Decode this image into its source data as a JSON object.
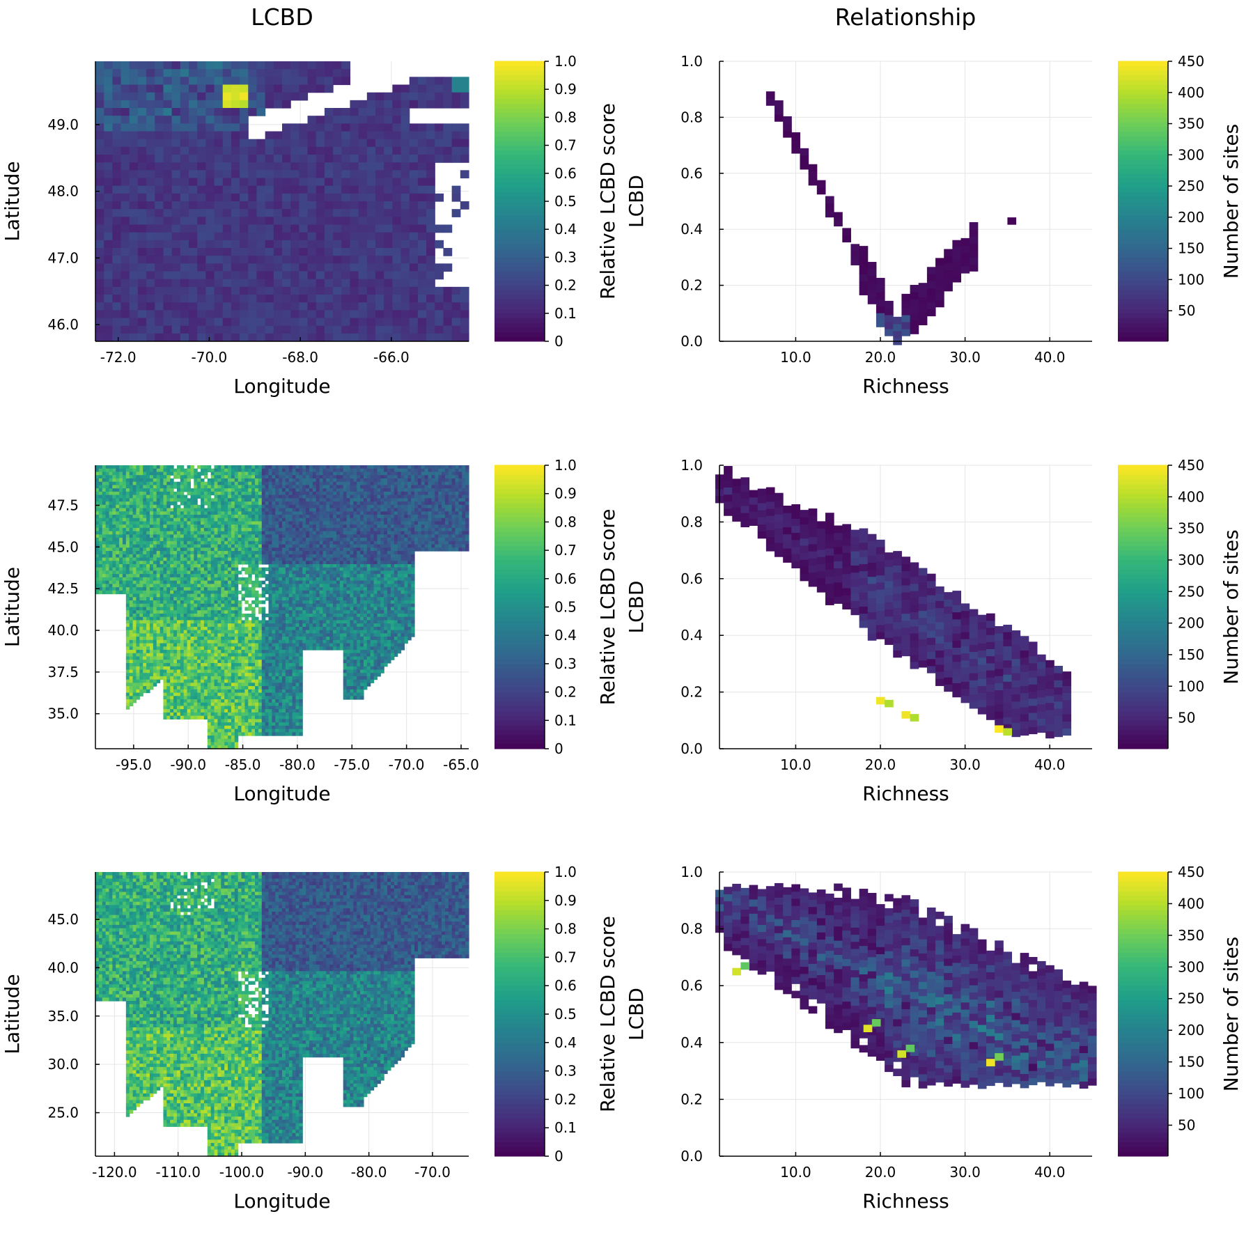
{
  "column_titles": [
    "LCBD",
    "Relationship"
  ],
  "colormap": [
    "#440154",
    "#482878",
    "#3e4989",
    "#31688e",
    "#26828e",
    "#1f9e89",
    "#35b779",
    "#6ece58",
    "#b5de2b",
    "#fde725"
  ],
  "colors": {
    "missing": "#ffffff",
    "axis": "#000000",
    "grid": "#e5e5e5"
  },
  "chart_data": [
    {
      "type": "heatmap",
      "panel": "map",
      "title": "LCBD",
      "xlabel": "Longitude",
      "ylabel": "Latitude",
      "xlim": [
        -72.5,
        -64.3
      ],
      "ylim": [
        45.75,
        49.95
      ],
      "xticks": [
        -72.0,
        -70.0,
        -68.0,
        -66.0
      ],
      "xtick_labels": [
        "-72.0",
        "-70.0",
        "-68.0",
        "-66.0"
      ],
      "yticks": [
        46.0,
        47.0,
        48.0,
        49.0
      ],
      "ytick_labels": [
        "46.0",
        "47.0",
        "48.0",
        "49.0"
      ],
      "colorbar": {
        "label": "Relative LCBD score",
        "range": [
          0,
          1
        ],
        "ticks": [
          0,
          0.1,
          0.2,
          0.3,
          0.4,
          0.5,
          0.6,
          0.7,
          0.8,
          0.9,
          1.0
        ],
        "tick_labels": [
          "0",
          "0.1",
          "0.2",
          "0.3",
          "0.4",
          "0.5",
          "0.6",
          "0.7",
          "0.8",
          "0.9",
          "1.0"
        ]
      },
      "grid": true,
      "approx_distribution": {
        "typical": 0.12,
        "high_values": "near -69.8, 49.6 (yellow, ~0.95)",
        "missing": "white areas: upper-right (St. Lawrence estuary), right edge (ocean)"
      }
    },
    {
      "type": "heatmap",
      "panel": "relationship",
      "title": "Relationship",
      "xlabel": "Richness",
      "ylabel": "LCBD",
      "xlim": [
        1,
        45
      ],
      "ylim": [
        0.0,
        1.0
      ],
      "xticks": [
        10.0,
        20.0,
        30.0,
        40.0
      ],
      "xtick_labels": [
        "10.0",
        "20.0",
        "30.0",
        "40.0"
      ],
      "yticks": [
        0.0,
        0.2,
        0.4,
        0.6,
        0.8,
        1.0
      ],
      "ytick_labels": [
        "0.0",
        "0.2",
        "0.4",
        "0.6",
        "0.8",
        "1.0"
      ],
      "colorbar": {
        "label": "Number of sites",
        "range": [
          1,
          450
        ],
        "ticks": [
          50,
          100,
          150,
          200,
          250,
          300,
          350,
          400,
          450
        ],
        "tick_labels": [
          "50",
          "100",
          "150",
          "200",
          "250",
          "300",
          "350",
          "400",
          "450"
        ]
      },
      "grid": true,
      "approx_distribution": {
        "shape": "U-shaped",
        "minimum": {
          "richness": 22,
          "lcbd": 0.03,
          "count": 100
        },
        "top_left": {
          "richness": 8,
          "lcbd": 0.88,
          "count": 10
        },
        "right_arm": {
          "richness": 31,
          "lcbd": 0.33,
          "count": 10
        },
        "outlier": {
          "richness": 35.5,
          "lcbd": 0.43,
          "count": 5
        }
      }
    },
    {
      "type": "heatmap",
      "panel": "map",
      "title": "",
      "xlabel": "Longitude",
      "ylabel": "Latitude",
      "xlim": [
        -98.5,
        -64.3
      ],
      "ylim": [
        32.9,
        49.9
      ],
      "xticks": [
        -95.0,
        -90.0,
        -85.0,
        -80.0,
        -75.0,
        -70.0,
        -65.0
      ],
      "xtick_labels": [
        "-95.0",
        "-90.0",
        "-85.0",
        "-80.0",
        "-75.0",
        "-70.0",
        "-65.0"
      ],
      "yticks": [
        35.0,
        37.5,
        40.0,
        42.5,
        45.0,
        47.5
      ],
      "ytick_labels": [
        "35.0",
        "37.5",
        "40.0",
        "42.5",
        "45.0",
        "47.5"
      ],
      "colorbar": {
        "label": "Relative LCBD score",
        "range": [
          0,
          1
        ],
        "ticks": [
          0,
          0.1,
          0.2,
          0.3,
          0.4,
          0.5,
          0.6,
          0.7,
          0.8,
          0.9,
          1.0
        ],
        "tick_labels": [
          "0",
          "0.1",
          "0.2",
          "0.3",
          "0.4",
          "0.5",
          "0.6",
          "0.7",
          "0.8",
          "0.9",
          "1.0"
        ]
      },
      "grid": true,
      "approx_distribution": {
        "typical": 0.12,
        "high_values": "western edge near -98 (0.6-0.95)",
        "missing": "Atlantic Ocean to the east/southeast"
      }
    },
    {
      "type": "heatmap",
      "panel": "relationship",
      "title": "",
      "xlabel": "Richness",
      "ylabel": "LCBD",
      "xlim": [
        1,
        45
      ],
      "ylim": [
        0.0,
        1.0
      ],
      "xticks": [
        10.0,
        20.0,
        30.0,
        40.0
      ],
      "xtick_labels": [
        "10.0",
        "20.0",
        "30.0",
        "40.0"
      ],
      "yticks": [
        0.0,
        0.2,
        0.4,
        0.6,
        0.8,
        1.0
      ],
      "ytick_labels": [
        "0.0",
        "0.2",
        "0.4",
        "0.6",
        "0.8",
        "1.0"
      ],
      "colorbar": {
        "label": "Number of sites",
        "range": [
          1,
          450
        ],
        "ticks": [
          50,
          100,
          150,
          200,
          250,
          300,
          350,
          400,
          450
        ],
        "tick_labels": [
          "50",
          "100",
          "150",
          "200",
          "250",
          "300",
          "350",
          "400",
          "450"
        ]
      },
      "grid": true,
      "approx_distribution": {
        "shape": "decreasing band",
        "start": {
          "richness": 2,
          "lcbd": 0.95
        },
        "end": {
          "richness": 42,
          "lcbd": 0.12
        },
        "hotspots": [
          {
            "richness": 20,
            "lcbd": 0.17,
            "count": 440
          },
          {
            "richness": 23,
            "lcbd": 0.12,
            "count": 440
          },
          {
            "richness": 34,
            "lcbd": 0.07,
            "count": 450
          }
        ]
      }
    },
    {
      "type": "heatmap",
      "panel": "map",
      "title": "",
      "xlabel": "Longitude",
      "ylabel": "Latitude",
      "xlim": [
        -123,
        -64.3
      ],
      "ylim": [
        20.5,
        49.9
      ],
      "xticks": [
        -120.0,
        -110.0,
        -100.0,
        -90.0,
        -80.0,
        -70.0
      ],
      "xtick_labels": [
        "-120.0",
        "-110.0",
        "-100.0",
        "-90.0",
        "-80.0",
        "-70.0"
      ],
      "yticks": [
        25.0,
        30.0,
        35.0,
        40.0,
        45.0
      ],
      "ytick_labels": [
        "25.0",
        "30.0",
        "35.0",
        "40.0",
        "45.0"
      ],
      "colorbar": {
        "label": "Relative LCBD score",
        "range": [
          0,
          1
        ],
        "ticks": [
          0,
          0.1,
          0.2,
          0.3,
          0.4,
          0.5,
          0.6,
          0.7,
          0.8,
          0.9,
          1.0
        ],
        "tick_labels": [
          "0",
          "0.1",
          "0.2",
          "0.3",
          "0.4",
          "0.5",
          "0.6",
          "0.7",
          "0.8",
          "0.9",
          "1.0"
        ]
      },
      "grid": true,
      "approx_distribution": {
        "typical": 0.45,
        "high_values": "Mexico and Great Plains (0.7-0.9)",
        "low_values": "northeast (0.2-0.3)",
        "missing": "oceans, Gulf of Mexico, scattered interior gaps"
      }
    },
    {
      "type": "heatmap",
      "panel": "relationship",
      "title": "",
      "xlabel": "Richness",
      "ylabel": "LCBD",
      "xlim": [
        1,
        45
      ],
      "ylim": [
        0.0,
        1.0
      ],
      "xticks": [
        10.0,
        20.0,
        30.0,
        40.0
      ],
      "xtick_labels": [
        "10.0",
        "20.0",
        "30.0",
        "40.0"
      ],
      "yticks": [
        0.0,
        0.2,
        0.4,
        0.6,
        0.8,
        1.0
      ],
      "ytick_labels": [
        "0.0",
        "0.2",
        "0.4",
        "0.6",
        "0.8",
        "1.0"
      ],
      "colorbar": {
        "label": "Number of sites",
        "range": [
          1,
          450
        ],
        "ticks": [
          50,
          100,
          150,
          200,
          250,
          300,
          350,
          400,
          450
        ],
        "tick_labels": [
          "50",
          "100",
          "150",
          "200",
          "250",
          "300",
          "350",
          "400",
          "450"
        ]
      },
      "grid": true,
      "approx_distribution": {
        "shape": "wide decreasing band",
        "start": {
          "richness": 1,
          "lcbd": 0.92
        },
        "end": {
          "richness": 45,
          "lcbd": 0.28
        },
        "hotspots": [
          {
            "richness": 3,
            "lcbd": 0.65,
            "count": 420
          },
          {
            "richness": 18.5,
            "lcbd": 0.45,
            "count": 430
          },
          {
            "richness": 22.5,
            "lcbd": 0.36,
            "count": 420
          },
          {
            "richness": 33,
            "lcbd": 0.33,
            "count": 440
          }
        ]
      }
    }
  ]
}
